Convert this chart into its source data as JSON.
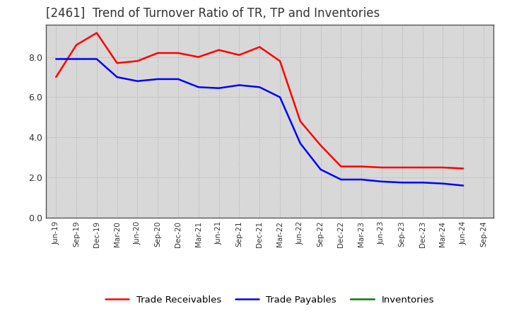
{
  "title": "[2461]  Trend of Turnover Ratio of TR, TP and Inventories",
  "x_labels": [
    "Jun-19",
    "Sep-19",
    "Dec-19",
    "Mar-20",
    "Jun-20",
    "Sep-20",
    "Dec-20",
    "Mar-21",
    "Jun-21",
    "Sep-21",
    "Dec-21",
    "Mar-22",
    "Jun-22",
    "Sep-22",
    "Dec-22",
    "Mar-23",
    "Jun-23",
    "Sep-23",
    "Dec-23",
    "Mar-24",
    "Jun-24",
    "Sep-24"
  ],
  "trade_receivables": [
    7.0,
    8.6,
    9.2,
    7.7,
    7.8,
    8.2,
    8.2,
    8.0,
    8.35,
    8.1,
    8.5,
    7.8,
    4.8,
    3.6,
    2.55,
    2.55,
    2.5,
    2.5,
    2.5,
    2.5,
    2.45,
    null
  ],
  "trade_payables": [
    7.9,
    7.9,
    7.9,
    7.0,
    6.8,
    6.9,
    6.9,
    6.5,
    6.45,
    6.6,
    6.5,
    6.0,
    3.7,
    2.4,
    1.9,
    1.9,
    1.8,
    1.75,
    1.75,
    1.7,
    1.6,
    null
  ],
  "inventories": [
    null,
    null,
    null,
    null,
    null,
    null,
    null,
    null,
    null,
    null,
    null,
    null,
    null,
    null,
    null,
    null,
    null,
    null,
    null,
    null,
    null,
    null
  ],
  "tr_color": "#ff0000",
  "tp_color": "#0000ff",
  "inv_color": "#008000",
  "ylim": [
    0.0,
    9.6
  ],
  "yticks": [
    0.0,
    2.0,
    4.0,
    6.0,
    8.0
  ],
  "background_color": "#ffffff",
  "plot_bg_color": "#d8d8d8",
  "grid_color": "#aaaaaa",
  "title_fontsize": 12,
  "legend_labels": [
    "Trade Receivables",
    "Trade Payables",
    "Inventories"
  ]
}
